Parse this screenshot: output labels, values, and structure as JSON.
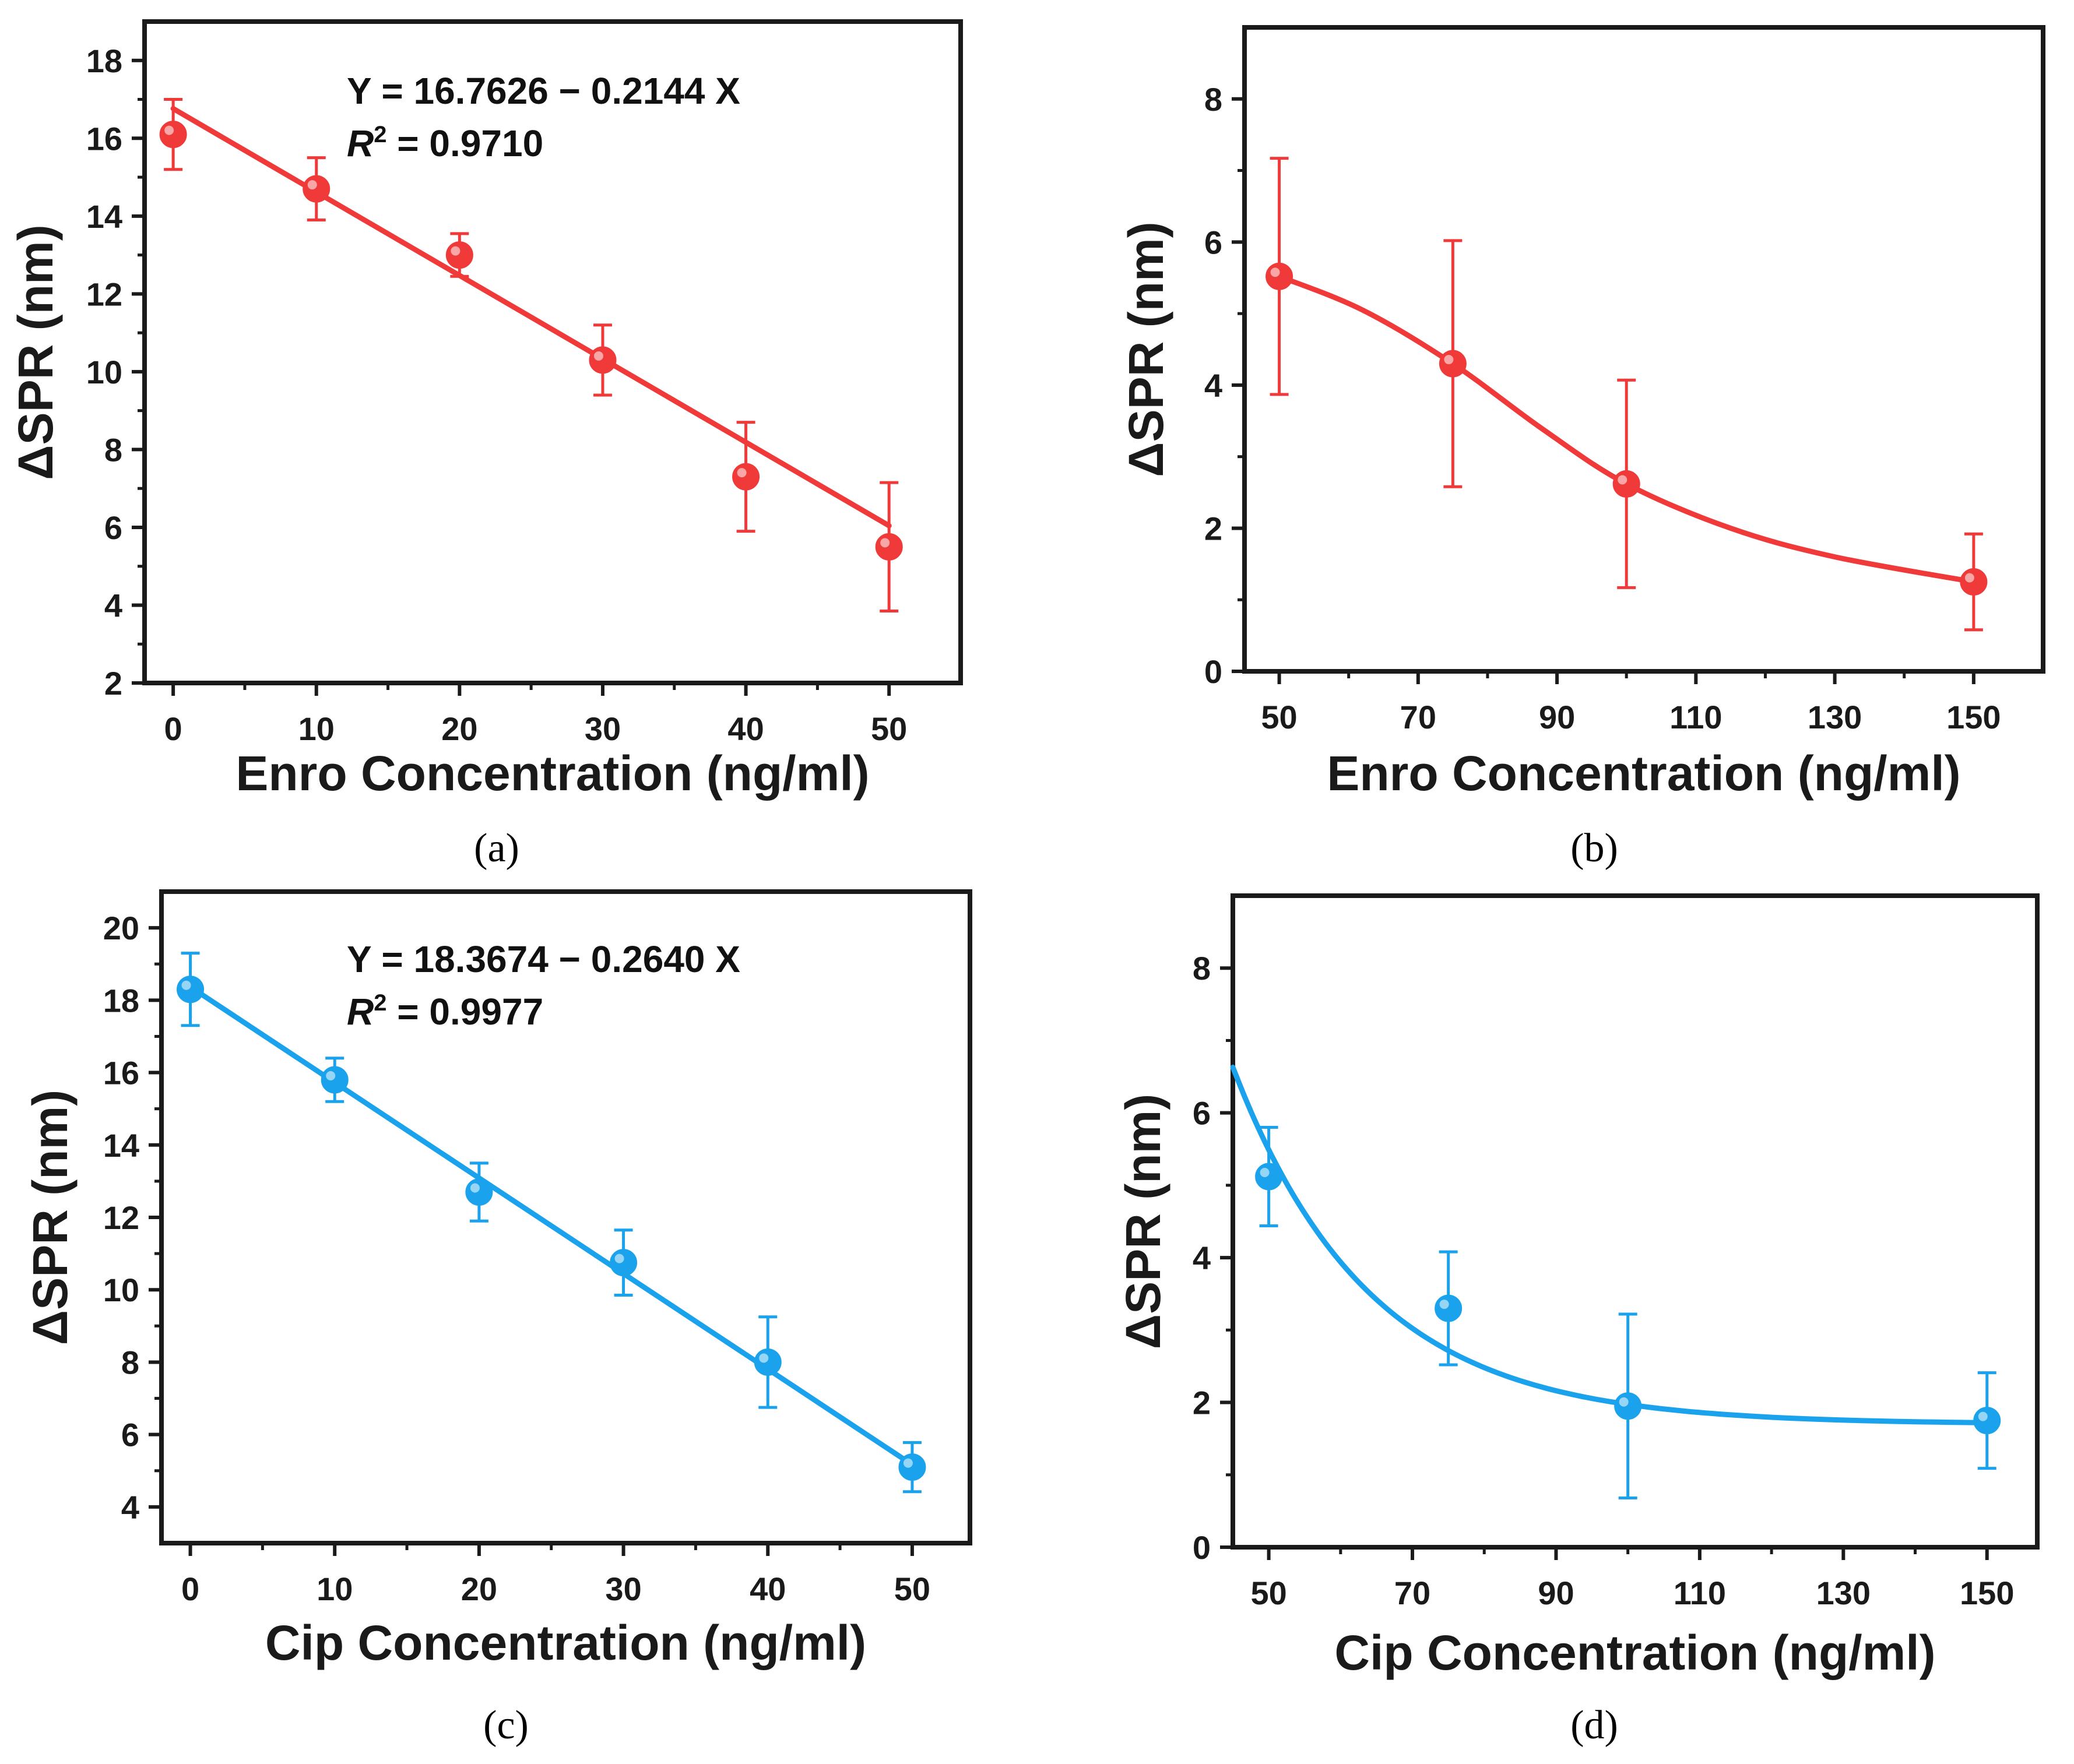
{
  "figure": {
    "panels": [
      "(a)",
      "(b)",
      "(c)",
      "(d)"
    ]
  },
  "chart_data": [
    {
      "id": "a",
      "type": "scatter",
      "panel_label": "(a)",
      "color": "#f03a3a",
      "xlabel": "Enro Concentration (ng/ml)",
      "ylabel": "ΔSPR (nm)",
      "xlim": [
        -2,
        55
      ],
      "ylim": [
        2,
        19
      ],
      "xticks": [
        0,
        10,
        20,
        30,
        40,
        50
      ],
      "xtick_labels": [
        "0",
        "10",
        "20",
        "30",
        "40",
        "50"
      ],
      "yticks": [
        2,
        4,
        6,
        8,
        10,
        12,
        14,
        16,
        18
      ],
      "ytick_labels": [
        "2",
        "4",
        "6",
        "8",
        "10",
        "12",
        "14",
        "16",
        "18"
      ],
      "x": [
        0,
        10,
        20,
        30,
        40,
        50
      ],
      "y": [
        16.1,
        14.7,
        13.0,
        10.3,
        7.3,
        5.5
      ],
      "err": [
        0.9,
        0.8,
        0.55,
        0.9,
        1.4,
        1.65
      ],
      "fit": {
        "kind": "linear",
        "intercept": 16.7626,
        "slope": -0.2144,
        "x_range": [
          0,
          50
        ]
      },
      "equation": "Y = 16.7626 − 0.2144 X",
      "r2_var": "R",
      "r2_sup": "2",
      "r2_rest": " = 0.9710"
    },
    {
      "id": "b",
      "type": "scatter",
      "panel_label": "(b)",
      "color": "#f03a3a",
      "xlabel": "Enro Concentration (ng/ml)",
      "ylabel": "ΔSPR (nm)",
      "xlim": [
        45,
        160
      ],
      "ylim": [
        0,
        9
      ],
      "xticks": [
        50,
        70,
        90,
        110,
        130,
        150
      ],
      "xtick_labels": [
        "50",
        "70",
        "90",
        "110",
        "130",
        "150"
      ],
      "yticks": [
        0,
        2,
        4,
        6,
        8
      ],
      "ytick_labels": [
        "0",
        "2",
        "4",
        "6",
        "8"
      ],
      "x": [
        50,
        75,
        100,
        150
      ],
      "y": [
        5.52,
        4.3,
        2.62,
        1.25
      ],
      "err": [
        1.65,
        1.72,
        1.45,
        0.67
      ],
      "fit": {
        "kind": "curve",
        "x": [
          50,
          62,
          75,
          88,
          100,
          115,
          130,
          150
        ],
        "y": [
          5.52,
          5.05,
          4.3,
          3.38,
          2.62,
          2.0,
          1.6,
          1.25
        ]
      }
    },
    {
      "id": "c",
      "type": "scatter",
      "panel_label": "(c)",
      "color": "#1aa3ec",
      "xlabel": "Cip Concentration (ng/ml)",
      "ylabel": "ΔSPR (nm)",
      "xlim": [
        -2,
        54
      ],
      "ylim": [
        3,
        21
      ],
      "xticks": [
        0,
        10,
        20,
        30,
        40,
        50
      ],
      "xtick_labels": [
        "0",
        "10",
        "20",
        "30",
        "40",
        "50"
      ],
      "yticks": [
        4,
        6,
        8,
        10,
        12,
        14,
        16,
        18,
        20
      ],
      "ytick_labels": [
        "4",
        "6",
        "8",
        "10",
        "12",
        "14",
        "16",
        "18",
        "20"
      ],
      "x": [
        0,
        10,
        20,
        30,
        40,
        50
      ],
      "y": [
        18.3,
        15.8,
        12.7,
        10.75,
        8.0,
        5.1
      ],
      "err": [
        1.0,
        0.6,
        0.8,
        0.9,
        1.25,
        0.68
      ],
      "fit": {
        "kind": "linear",
        "intercept": 18.3674,
        "slope": -0.264,
        "x_range": [
          0,
          50
        ]
      },
      "equation": "Y = 18.3674 − 0.2640 X",
      "r2_var": "R",
      "r2_sup": "2",
      "r2_rest": " = 0.9977"
    },
    {
      "id": "d",
      "type": "scatter",
      "panel_label": "(d)",
      "color": "#1aa3ec",
      "xlabel": "Cip Concentration (ng/ml)",
      "ylabel": "ΔSPR (nm)",
      "xlim": [
        45,
        157
      ],
      "ylim": [
        0,
        9
      ],
      "xticks": [
        50,
        70,
        90,
        110,
        130,
        150
      ],
      "xtick_labels": [
        "50",
        "70",
        "90",
        "110",
        "130",
        "150"
      ],
      "yticks": [
        0,
        2,
        4,
        6,
        8
      ],
      "ytick_labels": [
        "0",
        "2",
        "4",
        "6",
        "8"
      ],
      "x": [
        50,
        75,
        100,
        150
      ],
      "y": [
        5.12,
        3.3,
        1.95,
        1.75
      ],
      "err": [
        0.68,
        0.78,
        1.27,
        0.66
      ],
      "fit": {
        "kind": "exp_decay",
        "y0": 1.7,
        "A": 4.93,
        "x0": 45,
        "tau": 19.0,
        "x_range": [
          45,
          150
        ]
      }
    }
  ]
}
